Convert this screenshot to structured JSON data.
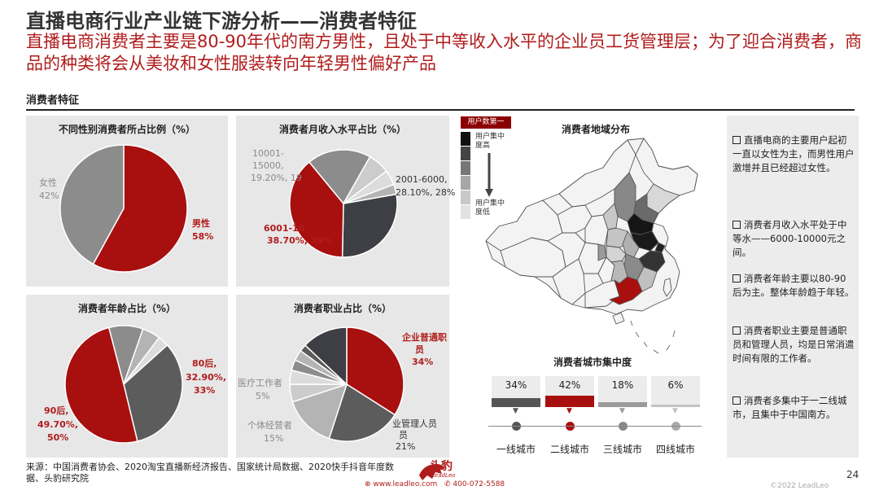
{
  "header": {
    "title": "直播电商行业产业链下游分析——消费者特征",
    "subtitle": "直播电商消费者主要是80-90年代的南方男性，且处于中等收入水平的企业员工货管理层；为了迎合消费者，商品的种类将会从美妆和女性服装转向年轻男性偏好产品",
    "section_title": "消费者特征"
  },
  "colors": {
    "red": "#a80f0f",
    "dark": "#3d3f44",
    "mid": "#5c5c5c",
    "grey": "#8c8c8c",
    "light": "#b4b4b4",
    "lighter": "#cccccc",
    "pale": "#dcdcdc",
    "accent_text": "#b01c1c"
  },
  "chart_data": [
    {
      "type": "pie",
      "title": "不同性别消费者所占比例（%）",
      "series": [
        {
          "name": "男性",
          "value": 58,
          "label": "58%"
        },
        {
          "name": "女性",
          "value": 42,
          "label": "42%"
        }
      ]
    },
    {
      "type": "pie",
      "title": "消费者月收入水平占比（%）",
      "series": [
        {
          "name": "2001-6000",
          "value": 28.1,
          "label": "28.10%, 28%"
        },
        {
          "name": "6001-10000",
          "value": 38.7,
          "label": "38.70%, 39%"
        },
        {
          "name": "10001-15000",
          "value": 19.2,
          "label": "19.20%, 19%"
        },
        {
          "name": "other_a",
          "value": 6.5
        },
        {
          "name": "other_b",
          "value": 4.5
        },
        {
          "name": "other_c",
          "value": 3.0
        }
      ],
      "visible_labels": {
        "a_name": "2001-6000,",
        "a_value": "28.10%, 28%",
        "b_name": "6001-10",
        "b_value": "38.70%, 39%",
        "c_line1": "10001-",
        "c_line2": "15000,",
        "c_value": "19.20%, 19"
      }
    },
    {
      "type": "pie",
      "title": "消费者年龄占比（%）",
      "series": [
        {
          "name": "80后",
          "value": 32.9,
          "label": "32.90%, 33%"
        },
        {
          "name": "90后",
          "value": 49.7,
          "label": "49.70%, 50%"
        },
        {
          "name": "other_a",
          "value": 9.4
        },
        {
          "name": "other_b",
          "value": 5.0
        },
        {
          "name": "other_c",
          "value": 3.0
        }
      ],
      "visible_labels": {
        "a_name": "80后,",
        "a_value1": "32.90%,",
        "a_value2": "33%",
        "b_name": "90后,",
        "b_value1": "49.70%,",
        "b_value2": "50%"
      }
    },
    {
      "type": "pie",
      "title": "消费者职业占比（%）",
      "series": [
        {
          "name": "企业普通职员",
          "value": 34,
          "label": "34%"
        },
        {
          "name": "企业管理人员",
          "value": 21,
          "label": "21%"
        },
        {
          "name": "个体经营者",
          "value": 15,
          "label": "15%"
        },
        {
          "name": "医疗工作者",
          "value": 5,
          "label": "5%"
        },
        {
          "name": "other_a",
          "value": 4
        },
        {
          "name": "other_b",
          "value": 3
        },
        {
          "name": "other_c",
          "value": 3
        },
        {
          "name": "other_d",
          "value": 2
        },
        {
          "name": "other_e",
          "value": 13
        }
      ],
      "visible_labels": {
        "a_l1": "企业普通职",
        "a_l2": "员",
        "a_l3": "34%",
        "b_l1": "业管理人员",
        "b_l2": "员",
        "b_l3": "21%",
        "c_l1": "个体经营者",
        "c_l2": "15%",
        "d_l1": "医疗工作者",
        "d_l2": "5%"
      }
    },
    {
      "type": "bar",
      "title": "消费者城市集中度",
      "categories": [
        "一线城市",
        "二线城市",
        "三线城市",
        "四线城市"
      ],
      "values": [
        34,
        42,
        18,
        6
      ],
      "labels": [
        "34%",
        "42%",
        "18%",
        "6%"
      ],
      "ylim": [
        0,
        100
      ]
    }
  ],
  "map": {
    "title": "消费者地域分布",
    "legend_badge": "用户数第一",
    "legend_high": [
      "用户集中",
      "度高"
    ],
    "legend_low": [
      "用户集中",
      "度低"
    ]
  },
  "notes": [
    "直播电商的主要用户起初一直以女性为主，而男性用户激增并且已经超过女性。",
    "消费者月收入水平处于中等水——6000-10000元之间。",
    "消费者年龄主要以80-90后为主。整体年龄趋于年轻。",
    "消费者职业主要是普通职员和管理人员，均是日常消遣时间有限的工作者。",
    "消费者多集中于一二线城市，且集中于中国南方。"
  ],
  "footer": {
    "source": "来源：中国消费者协会、2020淘宝直播新经济报告、国家统计局数据、2020快手抖音年度数据、头豹研究院",
    "logo_cn": "头豹",
    "logo_en": "LeadLeo",
    "website": "www.leadleo.com",
    "phone": "400-072-5588",
    "page": "24",
    "copyright": "©2022 LeadLeo"
  }
}
